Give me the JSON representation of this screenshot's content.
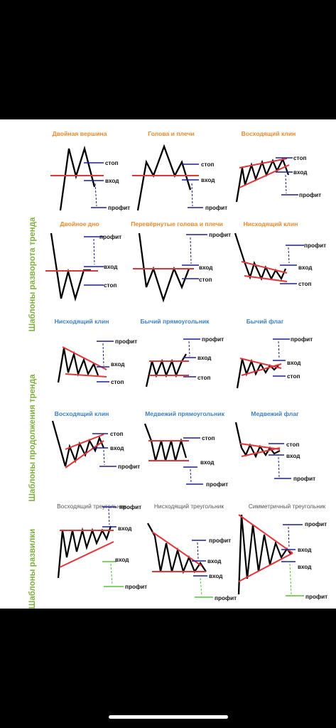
{
  "sections": [
    {
      "label": "Шаблоны разворота тренда"
    },
    {
      "label": "Шаблоны продолжения тренда"
    },
    {
      "label": "Шаблоны развилки"
    }
  ],
  "patterns": [
    {
      "title": "Двойная вершина",
      "levels": {
        "stop": "стоп",
        "entry": "вход",
        "profit": "профит"
      }
    },
    {
      "title": "Голова и плечи",
      "levels": {
        "stop": "стоп",
        "entry": "вход",
        "profit": "профит"
      }
    },
    {
      "title": "Восходящий клин",
      "levels": {
        "stop": "стоп",
        "entry": "вход",
        "profit": "профит"
      }
    },
    {
      "title": "Двойное дно",
      "levels": {
        "profit": "профит",
        "entry": "вход",
        "stop": "стоп"
      }
    },
    {
      "title": "Перевёрнутые голова и плечи",
      "levels": {
        "profit": "профит",
        "entry": "вход",
        "stop": "стоп"
      }
    },
    {
      "title": "Нисходящий клин",
      "levels": {
        "profit": "профит",
        "entry": "вход",
        "stop": "стоп"
      }
    },
    {
      "title": "Нисходящий клин",
      "levels": {
        "profit": "профит",
        "entry": "вход",
        "stop": "стоп"
      }
    },
    {
      "title": "Бычий прямоугольник",
      "levels": {
        "profit": "профит",
        "entry": "вход",
        "stop": "стоп"
      }
    },
    {
      "title": "Бычий флаг",
      "levels": {
        "profit": "профит",
        "entry": "вход",
        "stop": "стоп"
      }
    },
    {
      "title": "Восходящий клин",
      "levels": {
        "stop": "стоп",
        "entry": "вход",
        "profit": "профит"
      }
    },
    {
      "title": "Медвежий прямоугольник",
      "levels": {
        "stop": "стоп",
        "entry": "вход",
        "profit": "профит"
      }
    },
    {
      "title": "Медвежий флаг",
      "levels": {
        "stop": "стоп",
        "entry": "вход",
        "profit": "профит"
      }
    },
    {
      "title": "Восходящий треугольник",
      "levels": {
        "profit": "профит",
        "entry": "вход",
        "entry2": "вход",
        "profit2": "профит"
      }
    },
    {
      "title": "Нисходящий треугольник",
      "levels": {
        "profit": "профит",
        "entry": "вход",
        "entry2": "вход",
        "profit2": "профит"
      }
    },
    {
      "title": "Симметричный треугольник",
      "levels": {
        "profit": "профит",
        "entry": "вход",
        "entry2": "вход",
        "profit2": "профит"
      }
    }
  ],
  "colors": {
    "orange_title": "#e8892c",
    "blue_title": "#3d7fc0",
    "green_label": "#7fb043",
    "red_line": "#e0353b",
    "navy_level": "#1f1f8f",
    "green_level": "#56c23c",
    "price_line": "#000000"
  }
}
